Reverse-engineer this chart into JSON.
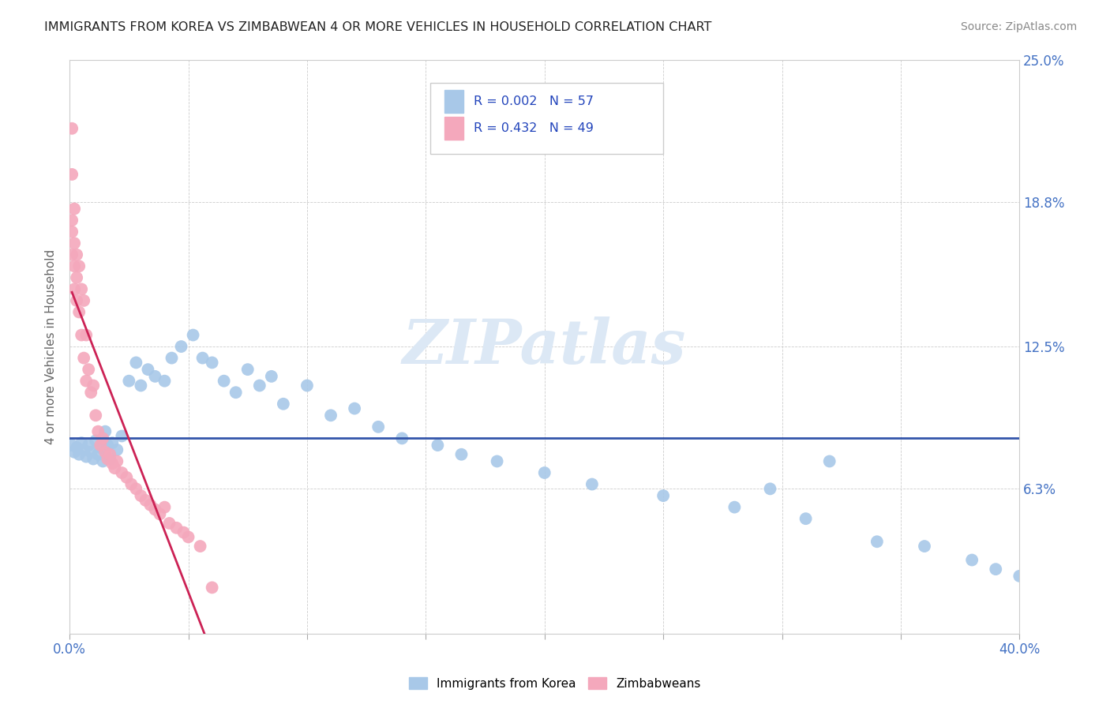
{
  "title": "IMMIGRANTS FROM KOREA VS ZIMBABWEAN 4 OR MORE VEHICLES IN HOUSEHOLD CORRELATION CHART",
  "source": "Source: ZipAtlas.com",
  "ylabel": "4 or more Vehicles in Household",
  "legend1_label": "Immigrants from Korea",
  "legend2_label": "Zimbabweans",
  "blue_color": "#a8c8e8",
  "pink_color": "#f4a8bc",
  "trendline_blue": "#3355aa",
  "trendline_pink": "#cc2255",
  "watermark_color": "#dce8f5",
  "xlim": [
    0.0,
    0.4
  ],
  "ylim": [
    0.0,
    0.25
  ],
  "ytick_vals": [
    0.0,
    0.063,
    0.125,
    0.188,
    0.25
  ],
  "ytick_labels": [
    "",
    "6.3%",
    "12.5%",
    "18.8%",
    "25.0%"
  ],
  "xtick_vals": [
    0.0,
    0.05,
    0.1,
    0.15,
    0.2,
    0.25,
    0.3,
    0.35,
    0.4
  ],
  "xtick_labels": [
    "0.0%",
    "",
    "",
    "",
    "",
    "",
    "",
    "",
    "40.0%"
  ],
  "blue_scatter_x": [
    0.001,
    0.002,
    0.003,
    0.004,
    0.005,
    0.006,
    0.007,
    0.008,
    0.009,
    0.01,
    0.011,
    0.012,
    0.013,
    0.014,
    0.015,
    0.016,
    0.017,
    0.018,
    0.02,
    0.022,
    0.025,
    0.028,
    0.03,
    0.033,
    0.036,
    0.04,
    0.043,
    0.047,
    0.052,
    0.056,
    0.06,
    0.065,
    0.07,
    0.075,
    0.08,
    0.085,
    0.09,
    0.1,
    0.11,
    0.12,
    0.13,
    0.14,
    0.155,
    0.165,
    0.18,
    0.2,
    0.22,
    0.25,
    0.28,
    0.31,
    0.34,
    0.36,
    0.38,
    0.39,
    0.4,
    0.32,
    0.295
  ],
  "blue_scatter_y": [
    0.082,
    0.079,
    0.081,
    0.078,
    0.083,
    0.08,
    0.077,
    0.082,
    0.079,
    0.076,
    0.084,
    0.078,
    0.081,
    0.075,
    0.088,
    0.082,
    0.076,
    0.083,
    0.08,
    0.086,
    0.11,
    0.118,
    0.108,
    0.115,
    0.112,
    0.11,
    0.12,
    0.125,
    0.13,
    0.12,
    0.118,
    0.11,
    0.105,
    0.115,
    0.108,
    0.112,
    0.1,
    0.108,
    0.095,
    0.098,
    0.09,
    0.085,
    0.082,
    0.078,
    0.075,
    0.07,
    0.065,
    0.06,
    0.055,
    0.05,
    0.04,
    0.038,
    0.032,
    0.028,
    0.025,
    0.075,
    0.063
  ],
  "pink_scatter_x": [
    0.001,
    0.001,
    0.001,
    0.001,
    0.001,
    0.002,
    0.002,
    0.002,
    0.002,
    0.003,
    0.003,
    0.003,
    0.004,
    0.004,
    0.005,
    0.005,
    0.006,
    0.006,
    0.007,
    0.007,
    0.008,
    0.009,
    0.01,
    0.011,
    0.012,
    0.013,
    0.014,
    0.015,
    0.016,
    0.017,
    0.018,
    0.019,
    0.02,
    0.022,
    0.024,
    0.026,
    0.028,
    0.03,
    0.032,
    0.034,
    0.036,
    0.038,
    0.04,
    0.042,
    0.045,
    0.048,
    0.05,
    0.055,
    0.06
  ],
  "pink_scatter_y": [
    0.22,
    0.2,
    0.18,
    0.175,
    0.165,
    0.185,
    0.17,
    0.16,
    0.15,
    0.165,
    0.155,
    0.145,
    0.16,
    0.14,
    0.15,
    0.13,
    0.145,
    0.12,
    0.13,
    0.11,
    0.115,
    0.105,
    0.108,
    0.095,
    0.088,
    0.082,
    0.085,
    0.079,
    0.076,
    0.078,
    0.074,
    0.072,
    0.075,
    0.07,
    0.068,
    0.065,
    0.063,
    0.06,
    0.058,
    0.056,
    0.054,
    0.052,
    0.055,
    0.048,
    0.046,
    0.044,
    0.042,
    0.038,
    0.02
  ]
}
